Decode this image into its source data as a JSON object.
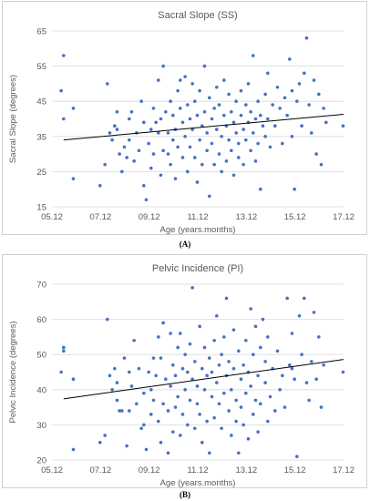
{
  "chart_data": [
    {
      "type": "scatter",
      "panel_label": "(A)",
      "title": "Sacral Slope (SS)",
      "xlabel": "Age (years.months)",
      "ylabel": "Sacral Slope (degrees)",
      "x_ticks": [
        "05.12",
        "07.12",
        "09.12",
        "11.12",
        "13.12",
        "15.12",
        "17.12"
      ],
      "y_ticks": [
        15,
        25,
        35,
        45,
        55,
        65
      ],
      "xlim": [
        5.12,
        17.12
      ],
      "ylim": [
        15,
        65
      ],
      "grid": "horizontal",
      "trendline": {
        "x": [
          5.6,
          17.12
        ],
        "y": [
          34.0,
          41.3
        ]
      },
      "marker_color": "#4472c4",
      "points": [
        [
          5.6,
          58
        ],
        [
          5.5,
          48
        ],
        [
          5.6,
          40
        ],
        [
          6.0,
          43
        ],
        [
          6.0,
          23
        ],
        [
          7.1,
          21
        ],
        [
          7.3,
          27
        ],
        [
          7.4,
          50
        ],
        [
          7.5,
          36
        ],
        [
          7.6,
          34
        ],
        [
          7.7,
          38
        ],
        [
          7.8,
          37
        ],
        [
          7.8,
          42
        ],
        [
          7.9,
          30
        ],
        [
          8.0,
          25
        ],
        [
          8.1,
          32
        ],
        [
          8.2,
          29
        ],
        [
          8.3,
          40
        ],
        [
          8.3,
          34
        ],
        [
          8.4,
          42
        ],
        [
          8.5,
          28
        ],
        [
          8.6,
          36
        ],
        [
          8.7,
          31
        ],
        [
          8.8,
          45
        ],
        [
          8.9,
          39
        ],
        [
          8.9,
          21
        ],
        [
          9.0,
          17
        ],
        [
          9.1,
          33
        ],
        [
          9.2,
          37
        ],
        [
          9.2,
          26
        ],
        [
          9.3,
          43
        ],
        [
          9.3,
          30
        ],
        [
          9.4,
          39
        ],
        [
          9.5,
          51
        ],
        [
          9.5,
          36
        ],
        [
          9.6,
          40
        ],
        [
          9.6,
          24
        ],
        [
          9.7,
          55
        ],
        [
          9.7,
          31
        ],
        [
          9.8,
          42
        ],
        [
          9.9,
          30
        ],
        [
          9.9,
          36
        ],
        [
          10.0,
          45
        ],
        [
          10.0,
          27
        ],
        [
          10.1,
          34
        ],
        [
          10.1,
          41
        ],
        [
          10.2,
          23
        ],
        [
          10.2,
          37
        ],
        [
          10.3,
          48
        ],
        [
          10.3,
          32
        ],
        [
          10.4,
          51
        ],
        [
          10.4,
          43
        ],
        [
          10.5,
          39
        ],
        [
          10.5,
          29
        ],
        [
          10.6,
          52
        ],
        [
          10.6,
          35
        ],
        [
          10.7,
          44
        ],
        [
          10.7,
          25
        ],
        [
          10.8,
          40
        ],
        [
          10.8,
          32
        ],
        [
          10.9,
          50
        ],
        [
          10.9,
          37
        ],
        [
          11.0,
          29
        ],
        [
          11.0,
          45
        ],
        [
          11.1,
          41
        ],
        [
          11.1,
          22
        ],
        [
          11.2,
          48
        ],
        [
          11.2,
          34
        ],
        [
          11.3,
          38
        ],
        [
          11.3,
          27
        ],
        [
          11.4,
          55
        ],
        [
          11.4,
          42
        ],
        [
          11.5,
          31
        ],
        [
          11.5,
          36
        ],
        [
          11.6,
          46
        ],
        [
          11.6,
          18
        ],
        [
          11.7,
          40
        ],
        [
          11.7,
          33
        ],
        [
          11.8,
          43
        ],
        [
          11.8,
          27
        ],
        [
          11.9,
          49
        ],
        [
          11.9,
          37
        ],
        [
          12.0,
          30
        ],
        [
          12.0,
          44
        ],
        [
          12.1,
          35
        ],
        [
          12.1,
          25
        ],
        [
          12.2,
          51
        ],
        [
          12.2,
          41
        ],
        [
          12.3,
          38
        ],
        [
          12.3,
          28
        ],
        [
          12.4,
          47
        ],
        [
          12.4,
          34
        ],
        [
          12.5,
          42
        ],
        [
          12.5,
          31
        ],
        [
          12.6,
          39
        ],
        [
          12.6,
          24
        ],
        [
          12.7,
          45
        ],
        [
          12.7,
          36
        ],
        [
          12.8,
          33
        ],
        [
          12.8,
          29
        ],
        [
          12.9,
          48
        ],
        [
          12.9,
          41
        ],
        [
          13.0,
          37
        ],
        [
          13.0,
          27
        ],
        [
          13.1,
          44
        ],
        [
          13.1,
          34
        ],
        [
          13.2,
          50
        ],
        [
          13.2,
          39
        ],
        [
          13.3,
          31
        ],
        [
          13.3,
          42
        ],
        [
          13.4,
          58
        ],
        [
          13.4,
          36
        ],
        [
          13.5,
          40
        ],
        [
          13.5,
          28
        ],
        [
          13.6,
          45
        ],
        [
          13.6,
          33
        ],
        [
          13.7,
          41
        ],
        [
          13.7,
          20
        ],
        [
          13.8,
          38
        ],
        [
          13.9,
          47
        ],
        [
          13.9,
          35
        ],
        [
          14.0,
          53
        ],
        [
          14.0,
          40
        ],
        [
          14.1,
          32
        ],
        [
          14.2,
          44
        ],
        [
          14.3,
          38
        ],
        [
          14.4,
          49
        ],
        [
          14.5,
          43
        ],
        [
          14.6,
          33
        ],
        [
          14.7,
          46
        ],
        [
          14.8,
          41
        ],
        [
          14.9,
          57
        ],
        [
          15.0,
          35
        ],
        [
          15.0,
          48
        ],
        [
          15.1,
          20
        ],
        [
          15.2,
          45
        ],
        [
          15.3,
          50
        ],
        [
          15.4,
          38
        ],
        [
          15.5,
          53
        ],
        [
          15.6,
          63
        ],
        [
          15.7,
          44
        ],
        [
          15.8,
          36
        ],
        [
          15.9,
          51
        ],
        [
          16.0,
          30
        ],
        [
          16.1,
          47
        ],
        [
          16.2,
          27
        ],
        [
          16.3,
          43
        ],
        [
          16.4,
          39
        ],
        [
          17.1,
          38
        ]
      ]
    },
    {
      "type": "scatter",
      "panel_label": "(B)",
      "title": "Pelvic Incidence (PI)",
      "xlabel": "Age (years.months)",
      "ylabel": "Pelvic Incidence (degrees)",
      "x_ticks": [
        "05.12",
        "07.12",
        "09.12",
        "11.12",
        "13.12",
        "15.12",
        "17.12"
      ],
      "y_ticks": [
        20,
        30,
        40,
        50,
        60,
        70
      ],
      "xlim": [
        5.12,
        17.12
      ],
      "ylim": [
        20,
        70
      ],
      "grid": "horizontal",
      "trendline": {
        "x": [
          5.6,
          17.12
        ],
        "y": [
          37.4,
          48.6
        ]
      },
      "marker_color": "#4472c4",
      "points": [
        [
          5.6,
          52
        ],
        [
          5.6,
          51
        ],
        [
          5.5,
          45
        ],
        [
          6.0,
          43
        ],
        [
          6.0,
          23
        ],
        [
          7.1,
          25
        ],
        [
          7.3,
          27
        ],
        [
          7.4,
          60
        ],
        [
          7.5,
          44
        ],
        [
          7.6,
          40
        ],
        [
          7.7,
          46
        ],
        [
          7.8,
          37
        ],
        [
          7.8,
          42
        ],
        [
          7.9,
          34
        ],
        [
          8.0,
          34
        ],
        [
          8.1,
          49
        ],
        [
          8.2,
          24
        ],
        [
          8.3,
          34
        ],
        [
          8.3,
          45
        ],
        [
          8.4,
          41
        ],
        [
          8.5,
          54
        ],
        [
          8.6,
          36
        ],
        [
          8.7,
          46
        ],
        [
          8.8,
          29
        ],
        [
          8.9,
          39
        ],
        [
          8.9,
          30
        ],
        [
          9.0,
          23
        ],
        [
          9.1,
          45
        ],
        [
          9.2,
          33
        ],
        [
          9.2,
          40
        ],
        [
          9.3,
          49
        ],
        [
          9.3,
          37
        ],
        [
          9.4,
          44
        ],
        [
          9.5,
          55
        ],
        [
          9.5,
          31
        ],
        [
          9.6,
          49
        ],
        [
          9.6,
          25
        ],
        [
          9.7,
          59
        ],
        [
          9.7,
          36
        ],
        [
          9.8,
          43
        ],
        [
          9.9,
          34
        ],
        [
          9.9,
          22
        ],
        [
          10.0,
          56
        ],
        [
          10.0,
          41
        ],
        [
          10.1,
          28
        ],
        [
          10.1,
          47
        ],
        [
          10.2,
          35
        ],
        [
          10.2,
          44
        ],
        [
          10.3,
          52
        ],
        [
          10.3,
          38
        ],
        [
          10.4,
          56
        ],
        [
          10.4,
          27
        ],
        [
          10.5,
          46
        ],
        [
          10.5,
          33
        ],
        [
          10.6,
          50
        ],
        [
          10.6,
          40
        ],
        [
          10.7,
          30
        ],
        [
          10.7,
          45
        ],
        [
          10.8,
          37
        ],
        [
          10.8,
          53
        ],
        [
          10.9,
          69
        ],
        [
          10.9,
          43
        ],
        [
          11.0,
          29
        ],
        [
          11.0,
          48
        ],
        [
          11.1,
          36
        ],
        [
          11.1,
          41
        ],
        [
          11.2,
          58
        ],
        [
          11.2,
          33
        ],
        [
          11.3,
          46
        ],
        [
          11.3,
          25
        ],
        [
          11.4,
          52
        ],
        [
          11.4,
          40
        ],
        [
          11.5,
          31
        ],
        [
          11.5,
          44
        ],
        [
          11.6,
          49
        ],
        [
          11.6,
          22
        ],
        [
          11.7,
          38
        ],
        [
          11.7,
          45
        ],
        [
          11.8,
          54
        ],
        [
          11.8,
          32
        ],
        [
          11.9,
          61
        ],
        [
          11.9,
          42
        ],
        [
          12.0,
          36
        ],
        [
          12.0,
          47
        ],
        [
          12.1,
          29
        ],
        [
          12.1,
          50
        ],
        [
          12.2,
          39
        ],
        [
          12.2,
          55
        ],
        [
          12.3,
          66
        ],
        [
          12.3,
          44
        ],
        [
          12.4,
          34
        ],
        [
          12.4,
          48
        ],
        [
          12.5,
          40
        ],
        [
          12.5,
          27
        ],
        [
          12.6,
          57
        ],
        [
          12.6,
          46
        ],
        [
          12.7,
          37
        ],
        [
          12.7,
          31
        ],
        [
          12.8,
          51
        ],
        [
          12.8,
          22
        ],
        [
          12.9,
          43
        ],
        [
          12.9,
          35
        ],
        [
          13.0,
          47
        ],
        [
          13.0,
          30
        ],
        [
          13.1,
          54
        ],
        [
          13.1,
          39
        ],
        [
          13.2,
          45
        ],
        [
          13.2,
          26
        ],
        [
          13.3,
          63
        ],
        [
          13.3,
          41
        ],
        [
          13.4,
          33
        ],
        [
          13.4,
          50
        ],
        [
          13.5,
          58
        ],
        [
          13.5,
          37
        ],
        [
          13.6,
          44
        ],
        [
          13.6,
          28
        ],
        [
          13.7,
          52
        ],
        [
          13.7,
          36
        ],
        [
          13.8,
          60
        ],
        [
          13.9,
          42
        ],
        [
          13.9,
          48
        ],
        [
          14.0,
          31
        ],
        [
          14.0,
          55
        ],
        [
          14.1,
          38
        ],
        [
          14.2,
          46
        ],
        [
          14.3,
          34
        ],
        [
          14.4,
          51
        ],
        [
          14.5,
          40
        ],
        [
          14.6,
          44
        ],
        [
          14.7,
          35
        ],
        [
          14.8,
          66
        ],
        [
          14.9,
          47
        ],
        [
          15.0,
          56
        ],
        [
          15.0,
          46
        ],
        [
          15.1,
          43
        ],
        [
          15.2,
          21
        ],
        [
          15.3,
          61
        ],
        [
          15.4,
          50
        ],
        [
          15.5,
          66
        ],
        [
          15.6,
          42
        ],
        [
          15.7,
          37
        ],
        [
          15.8,
          48
        ],
        [
          15.9,
          62
        ],
        [
          16.0,
          43
        ],
        [
          16.1,
          55
        ],
        [
          16.2,
          35
        ],
        [
          16.3,
          47
        ],
        [
          17.1,
          45
        ]
      ]
    }
  ]
}
